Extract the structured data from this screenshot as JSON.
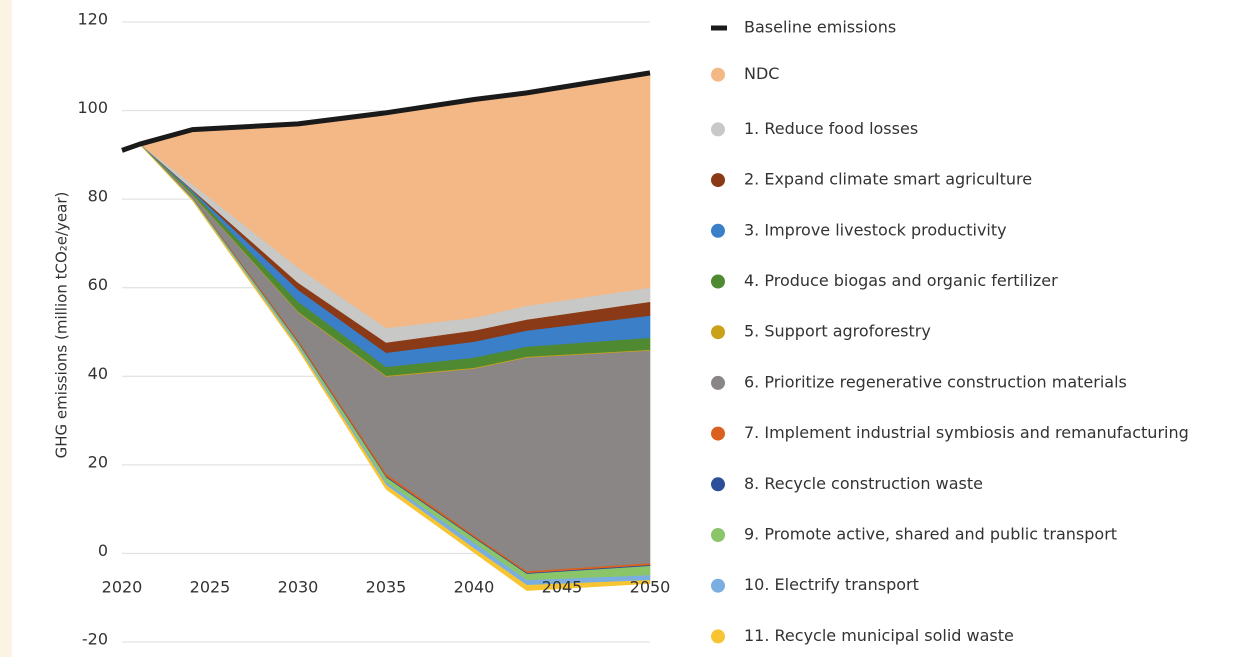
{
  "chart_data": {
    "type": "stacked-area",
    "y_axis_label": "GHG emissions (million tCO₂e/year)",
    "x": [
      2020,
      2021,
      2024,
      2030,
      2035,
      2040,
      2043,
      2050
    ],
    "xlim": [
      2020,
      2050
    ],
    "xticks": [
      2020,
      2025,
      2030,
      2035,
      2040,
      2045,
      2050
    ],
    "ylim": [
      -20,
      120
    ],
    "yticks": [
      -20,
      0,
      20,
      40,
      60,
      80,
      100,
      120
    ],
    "grid": true,
    "legend": "right",
    "baseline": {
      "name": "Baseline emissions",
      "color": "#1a1a1a",
      "values": [
        91,
        92.4,
        95.7,
        97,
        99.5,
        102.5,
        104,
        108.5
      ]
    },
    "series": [
      {
        "name": "NDC",
        "color": "#f3b886",
        "values": [
          null,
          0,
          12.5,
          32.6,
          48.7,
          49.4,
          48.2,
          48.6
        ]
      },
      {
        "name": "1. Reduce food losses",
        "color": "#c8c8c6",
        "values": [
          null,
          0,
          1.2,
          3.4,
          3.3,
          2.9,
          3.1,
          3.2
        ]
      },
      {
        "name": "2. Expand climate smart agriculture",
        "color": "#8b3a17",
        "values": [
          null,
          0,
          0.2,
          1.6,
          2.3,
          2.5,
          2.5,
          3.1
        ]
      },
      {
        "name": "3. Improve livestock productivity",
        "color": "#3a7fc8",
        "values": [
          null,
          0,
          0.4,
          2.7,
          3.2,
          3.6,
          3.6,
          5
        ]
      },
      {
        "name": "4. Produce biogas and organic fertilizer",
        "color": "#4f8a32",
        "values": [
          null,
          0,
          0.5,
          2.2,
          2,
          2.3,
          2.3,
          2.7
        ]
      },
      {
        "name": "5. Support agroforestry",
        "color": "#c9a21a",
        "values": [
          null,
          0,
          0.1,
          0.2,
          0.2,
          0.2,
          0.2,
          0.2
        ]
      },
      {
        "name": "6. Prioritize regenerative construction materials",
        "color": "#8a8686",
        "values": [
          null,
          0,
          0.5,
          6.2,
          21.9,
          37.6,
          48.2,
          48
        ]
      },
      {
        "name": "7. Implement industrial symbiosis and remanufacturing",
        "color": "#d9601f",
        "values": [
          null,
          0,
          0.1,
          0.4,
          0.6,
          0.4,
          0.4,
          0.4
        ]
      },
      {
        "name": "8. Recycle construction waste",
        "color": "#2c4f9a",
        "values": [
          null,
          0,
          0.1,
          0.2,
          0.2,
          0.2,
          0.2,
          0.2
        ]
      },
      {
        "name": "9. Promote active, shared and public transport",
        "color": "#8bc56a",
        "values": [
          null,
          0,
          0.2,
          0.6,
          1.1,
          1.1,
          1.4,
          2.1
        ]
      },
      {
        "name": "10. Electrify transport",
        "color": "#7aaee0",
        "values": [
          null,
          0,
          0.1,
          0.4,
          0.6,
          1.2,
          1.1,
          1.1
        ]
      },
      {
        "name": "11. Recycle municipal solid waste",
        "color": "#f7c531",
        "values": [
          null,
          0,
          0.1,
          0.4,
          0.9,
          0.9,
          1.2,
          0.7
        ]
      }
    ]
  }
}
